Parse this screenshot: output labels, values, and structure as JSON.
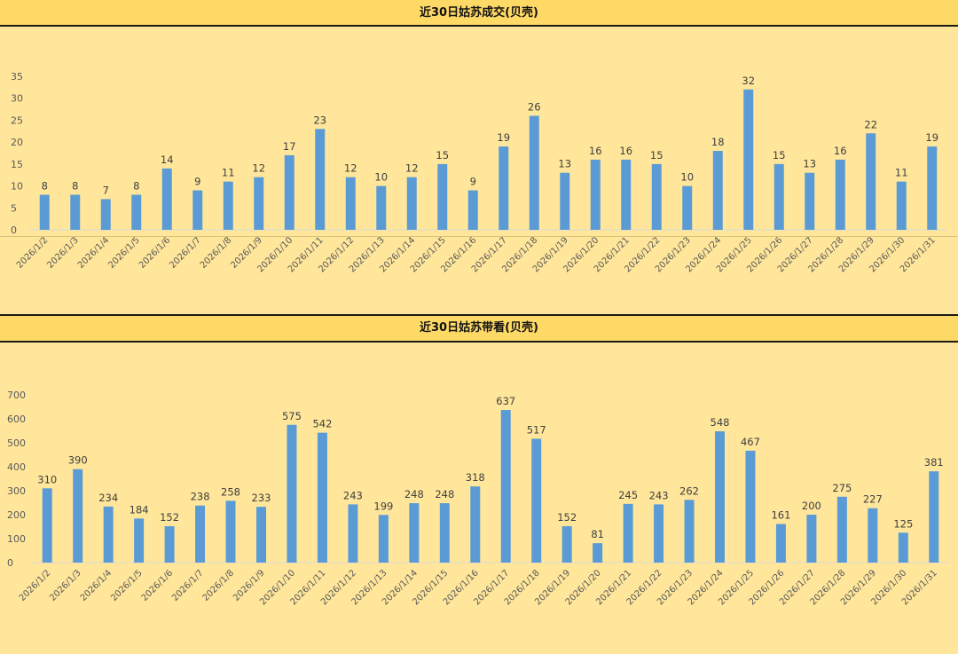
{
  "chart_data": [
    {
      "type": "bar",
      "title": "近30日姑苏成交(贝壳)",
      "categories": [
        "2026/1/2",
        "2026/1/3",
        "2026/1/4",
        "2026/1/5",
        "2026/1/6",
        "2026/1/7",
        "2026/1/8",
        "2026/1/9",
        "2026/1/10",
        "2026/1/11",
        "2026/1/12",
        "2026/1/13",
        "2026/1/14",
        "2026/1/15",
        "2026/1/16",
        "2026/1/17",
        "2026/1/18",
        "2026/1/19",
        "2026/1/20",
        "2026/1/21",
        "2026/1/22",
        "2026/1/23",
        "2026/1/24",
        "2026/1/25",
        "2026/1/26",
        "2026/1/27",
        "2026/1/28",
        "2026/1/29",
        "2026/1/30",
        "2026/1/31"
      ],
      "values": [
        8,
        8,
        7,
        8,
        14,
        9,
        11,
        12,
        17,
        23,
        12,
        10,
        12,
        15,
        9,
        19,
        26,
        13,
        16,
        16,
        15,
        10,
        18,
        32,
        15,
        13,
        16,
        22,
        11,
        19
      ],
      "yticks": [
        0,
        5,
        10,
        15,
        20,
        25,
        30,
        35
      ],
      "ylim": [
        0,
        35
      ],
      "grid": false,
      "bar_color": "#5B9BD5"
    },
    {
      "type": "bar",
      "title": "近30日姑苏带看(贝壳)",
      "categories": [
        "2026/1/2",
        "2026/1/3",
        "2026/1/4",
        "2026/1/5",
        "2026/1/6",
        "2026/1/7",
        "2026/1/8",
        "2026/1/9",
        "2026/1/10",
        "2026/1/11",
        "2026/1/12",
        "2026/1/13",
        "2026/1/14",
        "2026/1/15",
        "2026/1/16",
        "2026/1/17",
        "2026/1/18",
        "2026/1/19",
        "2026/1/20",
        "2026/1/21",
        "2026/1/22",
        "2026/1/23",
        "2026/1/24",
        "2026/1/25",
        "2026/1/26",
        "2026/1/27",
        "2026/1/28",
        "2026/1/29",
        "2026/1/30",
        "2026/1/31"
      ],
      "values": [
        310,
        390,
        234,
        184,
        152,
        238,
        258,
        233,
        575,
        542,
        243,
        199,
        248,
        248,
        318,
        637,
        517,
        152,
        81,
        245,
        243,
        262,
        548,
        467,
        161,
        200,
        275,
        227,
        125,
        381
      ],
      "yticks": [
        0,
        100,
        200,
        300,
        400,
        500,
        600,
        700
      ],
      "ylim": [
        0,
        700
      ],
      "grid": false,
      "bar_color": "#5B9BD5"
    }
  ]
}
